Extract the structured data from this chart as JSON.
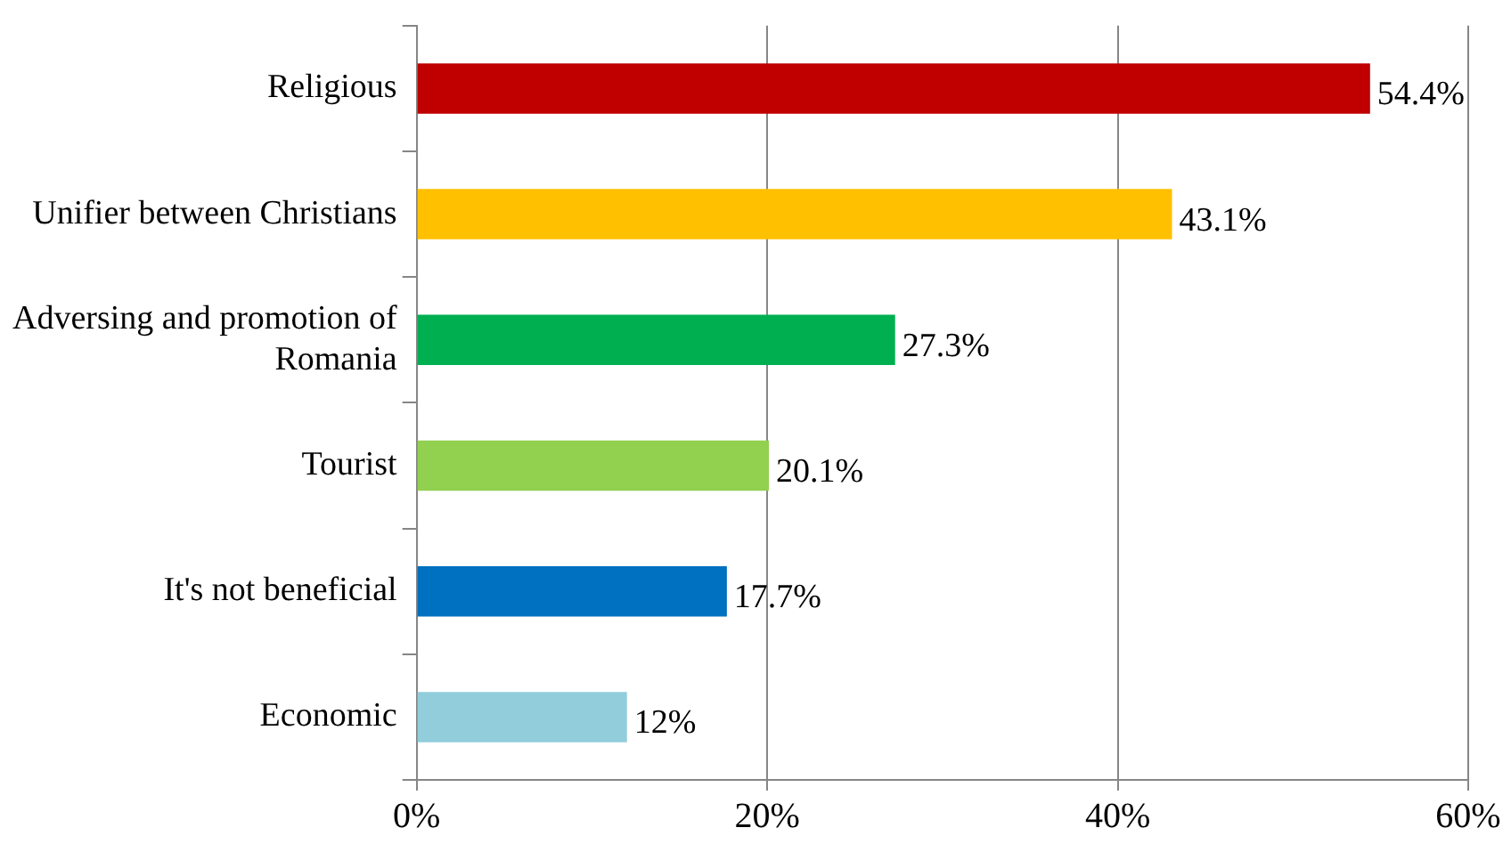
{
  "chart_data": {
    "type": "bar",
    "orientation": "horizontal",
    "categories": [
      "Religious",
      "Unifier between Christians",
      "Adversing and promotion of Romania",
      "Tourist",
      "It's not beneficial",
      "Economic"
    ],
    "values": [
      54.4,
      43.1,
      27.3,
      20.1,
      17.7,
      12
    ],
    "colors": [
      "#c00000",
      "#ffc000",
      "#00b050",
      "#92d050",
      "#0070c0",
      "#92cddc"
    ],
    "value_labels": [
      "54.4%",
      "43.1%",
      "27.3%",
      "20.1%",
      "17.7%",
      "12%"
    ],
    "xlim": [
      0,
      60
    ],
    "xticks": [
      {
        "value": 0,
        "label": "0%"
      },
      {
        "value": 20,
        "label": "20%"
      },
      {
        "value": 40,
        "label": "40%"
      },
      {
        "value": 60,
        "label": "60%"
      }
    ],
    "grid": "x",
    "legend": false
  }
}
